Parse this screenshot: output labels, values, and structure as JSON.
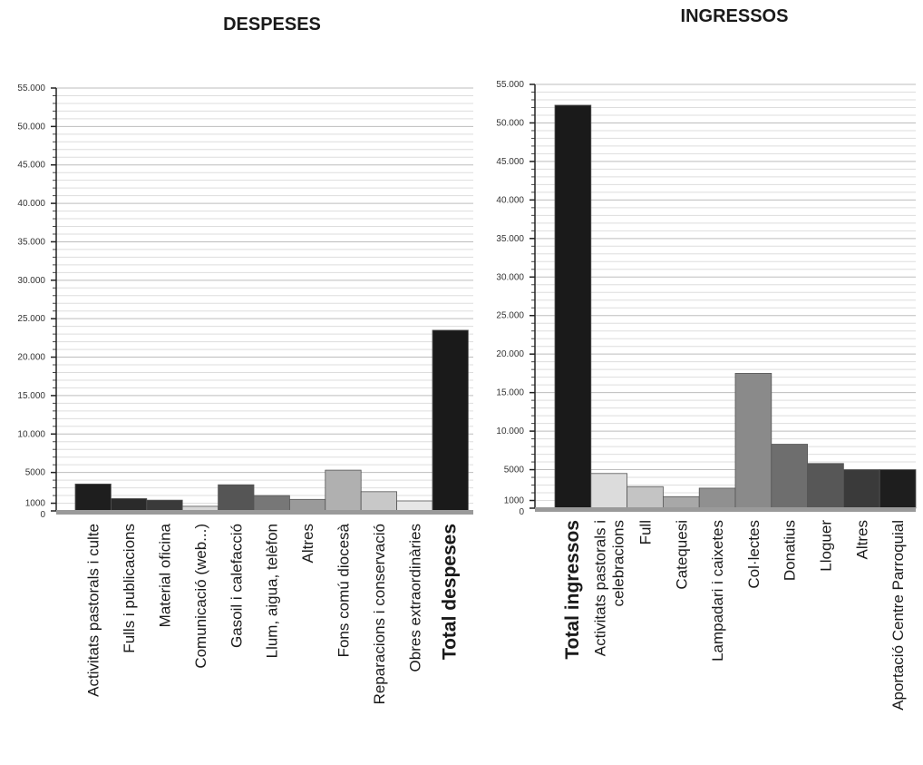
{
  "chart_data": [
    {
      "type": "bar",
      "title": "DESPESES",
      "ylim": [
        0,
        55000
      ],
      "yticks": [
        {
          "value": 0,
          "label": "0"
        },
        {
          "value": 1000,
          "label": "1000"
        },
        {
          "value": 5000,
          "label": "5000"
        },
        {
          "value": 10000,
          "label": "10.000"
        },
        {
          "value": 15000,
          "label": "15.000"
        },
        {
          "value": 20000,
          "label": "20.000"
        },
        {
          "value": 25000,
          "label": "25.000"
        },
        {
          "value": 30000,
          "label": "30.000"
        },
        {
          "value": 35000,
          "label": "35.000"
        },
        {
          "value": 40000,
          "label": "40.000"
        },
        {
          "value": 45000,
          "label": "45.000"
        },
        {
          "value": 50000,
          "label": "50.000"
        },
        {
          "value": 55000,
          "label": "55.000"
        }
      ],
      "grid": true,
      "categories": [
        {
          "label": "Activitats pastorals i culte",
          "value": 3500,
          "color": "#1e1e1e",
          "bold": false
        },
        {
          "label": "Fulls i publicacions",
          "value": 1600,
          "color": "#2a2a2a",
          "bold": false
        },
        {
          "label": "Material oficina",
          "value": 1400,
          "color": "#3a3a3a",
          "bold": false
        },
        {
          "label": "Comunicació (web...)",
          "value": 600,
          "color": "#d8d8d8",
          "bold": false
        },
        {
          "label": "Gasoil i calefacció",
          "value": 3400,
          "color": "#555555",
          "bold": false
        },
        {
          "label": "Llum, aigua, telèfon",
          "value": 2000,
          "color": "#777777",
          "bold": false
        },
        {
          "label": "Altres",
          "value": 1500,
          "color": "#9a9a9a",
          "bold": false
        },
        {
          "label": "Fons comú diocesà",
          "value": 5300,
          "color": "#b0b0b0",
          "bold": false
        },
        {
          "label": "Reparacions i conservació",
          "value": 2500,
          "color": "#c8c8c8",
          "bold": false
        },
        {
          "label": "Obres extraordinàries",
          "value": 1300,
          "color": "#e6e6e6",
          "bold": false
        },
        {
          "label": "Total despeses",
          "value": 23500,
          "color": "#1a1a1a",
          "bold": true
        }
      ]
    },
    {
      "type": "bar",
      "title": "INGRESSOS",
      "ylim": [
        0,
        55000
      ],
      "yticks": [
        {
          "value": 0,
          "label": "0"
        },
        {
          "value": 1000,
          "label": "1000"
        },
        {
          "value": 5000,
          "label": "5000"
        },
        {
          "value": 10000,
          "label": "10.000"
        },
        {
          "value": 15000,
          "label": "15.000"
        },
        {
          "value": 20000,
          "label": "20.000"
        },
        {
          "value": 25000,
          "label": "25.000"
        },
        {
          "value": 30000,
          "label": "30.000"
        },
        {
          "value": 35000,
          "label": "35.000"
        },
        {
          "value": 40000,
          "label": "40.000"
        },
        {
          "value": 45000,
          "label": "45.000"
        },
        {
          "value": 50000,
          "label": "50.000"
        },
        {
          "value": 55000,
          "label": "55.000"
        }
      ],
      "grid": true,
      "categories": [
        {
          "label": "Total ingressos",
          "value": 52300,
          "color": "#1a1a1a",
          "bold": true
        },
        {
          "label": "Activitats pastorals i|celebracions",
          "value": 4500,
          "color": "#dcdcdc",
          "bold": false
        },
        {
          "label": "Full",
          "value": 2800,
          "color": "#c4c4c4",
          "bold": false
        },
        {
          "label": "Catequesi",
          "value": 1500,
          "color": "#a8a8a8",
          "bold": false
        },
        {
          "label": "Lampadari i caixetes",
          "value": 2600,
          "color": "#909090",
          "bold": false
        },
        {
          "label": "Col·lectes",
          "value": 17500,
          "color": "#8a8a8a",
          "bold": false
        },
        {
          "label": "Donatius",
          "value": 8300,
          "color": "#6e6e6e",
          "bold": false
        },
        {
          "label": "Lloguer",
          "value": 5800,
          "color": "#575757",
          "bold": false
        },
        {
          "label": "Altres",
          "value": 5000,
          "color": "#3a3a3a",
          "bold": false
        },
        {
          "label": "Aportació Centre Parroquial",
          "value": 5000,
          "color": "#1e1e1e",
          "bold": false
        }
      ]
    }
  ]
}
